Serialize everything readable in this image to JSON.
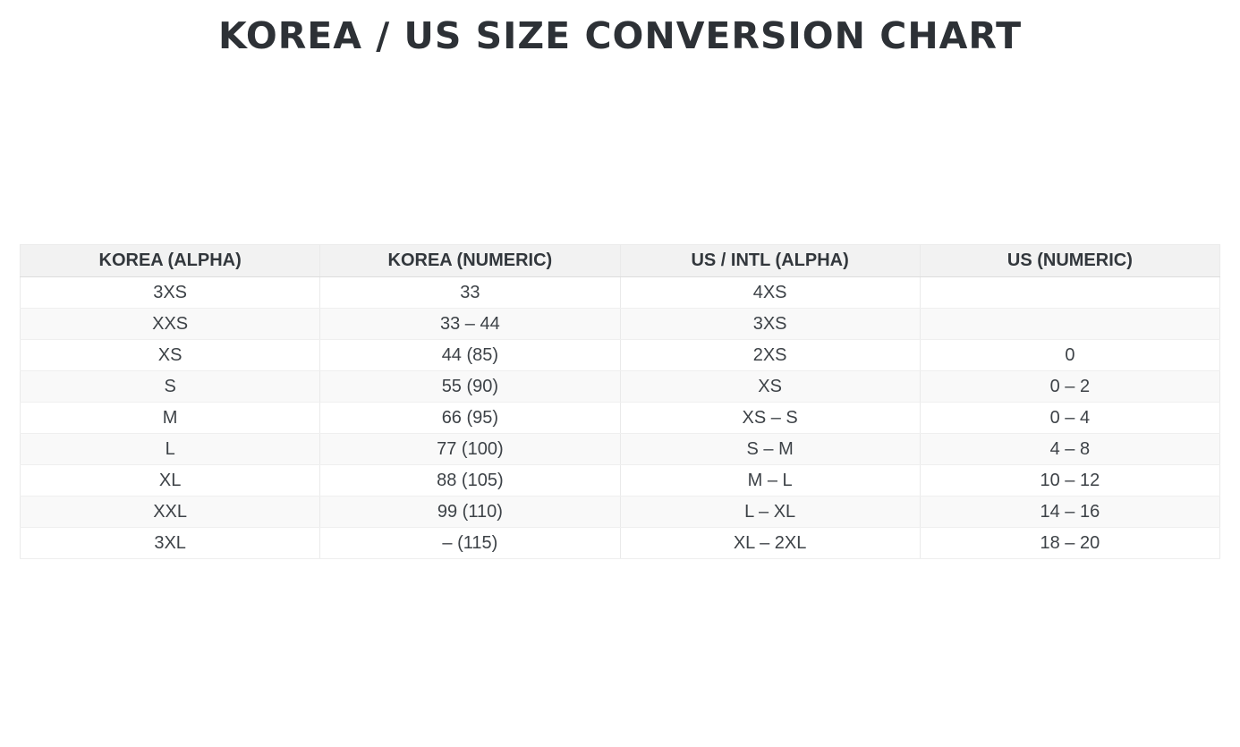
{
  "page": {
    "title": "KOREA / US SIZE CONVERSION CHART",
    "background_color": "#ffffff"
  },
  "colors": {
    "title_text": "#2d3136",
    "header_background": "#f2f2f2",
    "header_text": "#32373c",
    "row_background": "#ffffff",
    "row_alt_background": "#f9f9f9",
    "cell_text": "#3d4247",
    "border": "#eaeaea"
  },
  "chart_data": {
    "type": "table",
    "title": "KOREA / US SIZE CONVERSION CHART",
    "columns": [
      "KOREA (ALPHA)",
      "KOREA (NUMERIC)",
      "US / INTL (ALPHA)",
      "US (NUMERIC)"
    ],
    "rows": [
      [
        "3XS",
        "33",
        "4XS",
        ""
      ],
      [
        "XXS",
        "33 – 44",
        "3XS",
        ""
      ],
      [
        "XS",
        "44 (85)",
        "2XS",
        "0"
      ],
      [
        "S",
        "55 (90)",
        "XS",
        "0 – 2"
      ],
      [
        "M",
        "66 (95)",
        "XS – S",
        "0 – 4"
      ],
      [
        "L",
        "77 (100)",
        "S – M",
        "4 – 8"
      ],
      [
        "XL",
        "88 (105)",
        "M – L",
        "10 – 12"
      ],
      [
        "XXL",
        "99 (110)",
        "L – XL",
        "14 – 16"
      ],
      [
        "3XL",
        "– (115)",
        "XL – 2XL",
        "18 – 20"
      ]
    ],
    "layout": {
      "striped_rows": true,
      "text_align": "center",
      "header_style": "bold-gray"
    }
  }
}
